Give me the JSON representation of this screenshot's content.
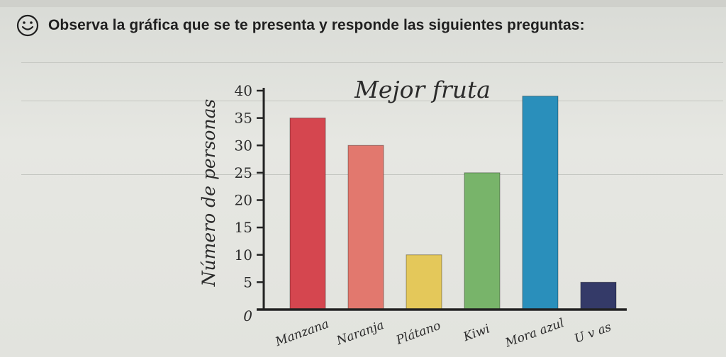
{
  "instruction": {
    "text": "Observa la gráfica que se te presenta y responde las siguientes preguntas:",
    "icon": "smiley-icon"
  },
  "chart_data": {
    "type": "bar",
    "title": "Mejor fruta",
    "xlabel": "",
    "ylabel": "Número de personas",
    "categories": [
      "Manzana",
      "Naranja",
      "Plátano",
      "Kiwi",
      "Mora azul",
      "U v as"
    ],
    "values": [
      35,
      30,
      10,
      25,
      39,
      5
    ],
    "colors": [
      "#d5464f",
      "#e2786e",
      "#e4c85a",
      "#78b46a",
      "#2a8fbb",
      "#343a68"
    ],
    "ylim": [
      0,
      40
    ],
    "yticks": [
      0,
      5,
      10,
      15,
      20,
      25,
      30,
      35,
      40
    ],
    "grid": false,
    "legend": "none"
  }
}
